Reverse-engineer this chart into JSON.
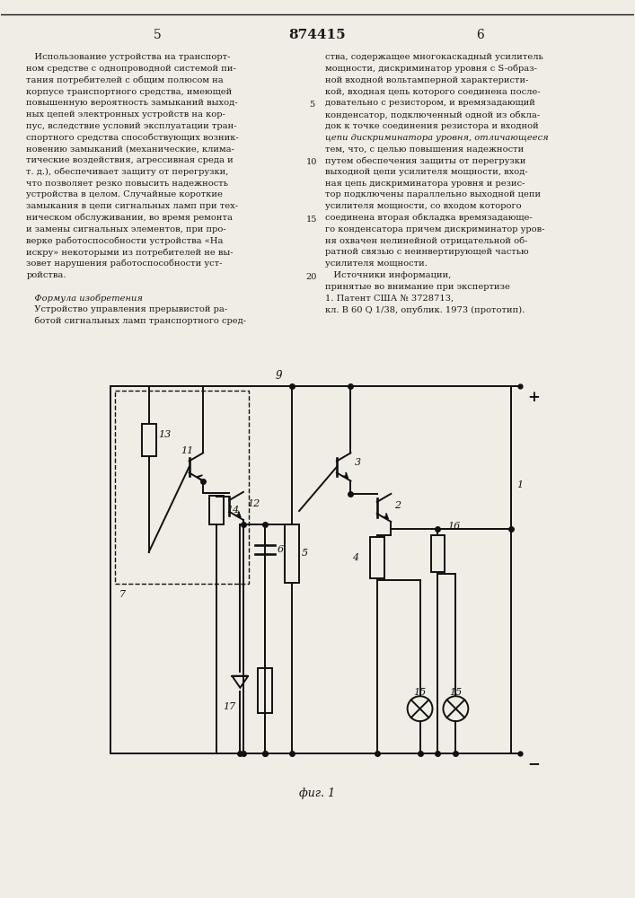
{
  "title": "874415",
  "page_left": "5",
  "page_right": "6",
  "fig_label": "фиг. 1",
  "background": "#f0ede6",
  "text_color": "#1a1a1a",
  "line_numbers_left": [
    "5",
    "10",
    "15",
    "20"
  ],
  "left_col_lines": [
    "   Использование устройства на транспорт-",
    "ном средстве с однопроводной системой пи-",
    "тания потребителей с общим полюсом на",
    "корпусе транспортного средства, имеющей",
    "повышенную вероятность замыканий выход-",
    "ных цепей электронных устройств на кор-",
    "пус, вследствие условий эксплуатации тран-",
    "спортного средства способствующих возник-",
    "новению замыканий (механические, клима-",
    "тические воздействия, агрессивная среда и",
    "т. д.), обеспечивает защиту от перегрузки,",
    "что позволяет резко повысить надежность",
    "устройства в целом. Случайные короткие",
    "замыкания в цепи сигнальных ламп при тех-",
    "ническом обслуживании, во время ремонта",
    "и замены сигнальных элементов, при про-",
    "верке работоспособности устройства «На",
    "искру» некоторыми из потребителей не вы-",
    "зовет нарушения работоспособности уст-",
    "ройства.",
    "",
    "   Формула изобретения",
    "   Устройство управления прерывистой ра-",
    "   ботой сигнальных ламп транспортного сред-"
  ],
  "right_col_lines": [
    "ства, содержащее многокаскадный усилитель",
    "мощности, дискриминатор уровня с S-образ-",
    "ной входной вольтамперной характеристи-",
    "кой, входная цепь которого соединена после-",
    "довательно с резистором, и времязадающий",
    "конденсатор, подключенный одной из обкла-",
    "док к точке соединения резистора и входной",
    "цепи дискриминатора уровня, отличающееся",
    "тем, что, с целью повышения надежности",
    "путем обеспечения защиты от перегрузки",
    "выходной цепи усилителя мощности, вход-",
    "ная цепь дискриминатора уровня и резис-",
    "тор подключены параллельно выходной цепи",
    "усилителя мощности, со входом которого",
    "соединена вторая обкладка времязадающе-",
    "го конденсатора причем дискриминатор уров-",
    "ня охвачен нелинейной отрицательной об-",
    "ратной связью с неинвертирующей частью",
    "усилителя мощности.",
    "   Источники информации,",
    "принятые во внимание при экспертизе",
    "1. Патент США № 3728713,",
    "кл. В 60 Q 1/38, опублик. 1973 (прототип)."
  ]
}
